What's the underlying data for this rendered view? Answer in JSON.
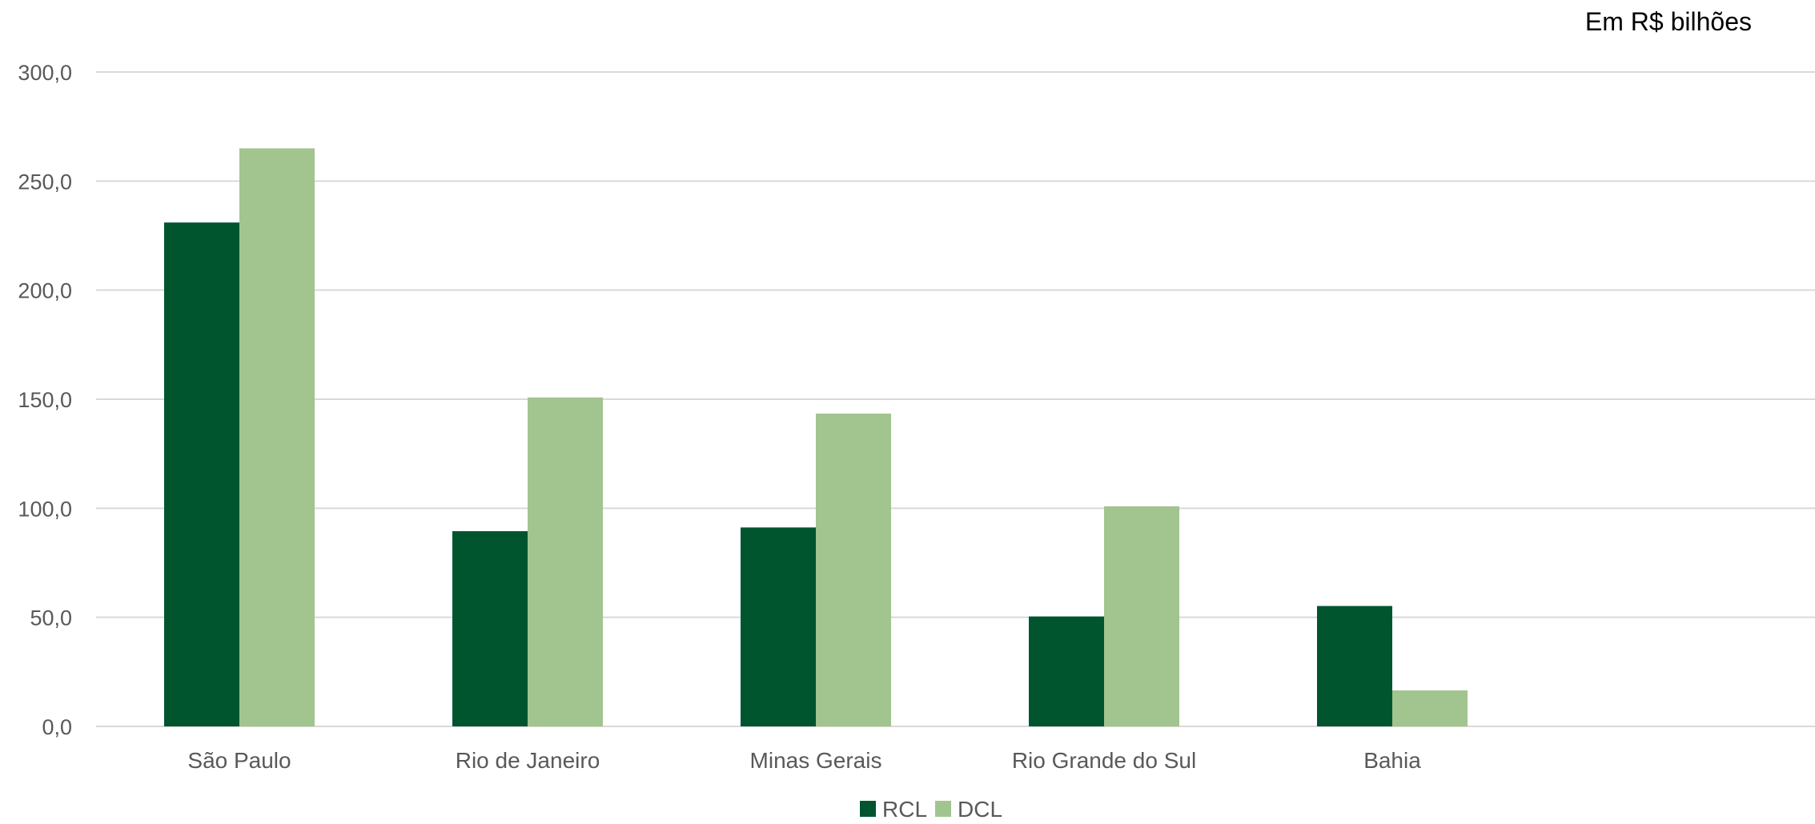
{
  "chart_data": {
    "type": "bar",
    "unit_note": "Em R$ bilhões",
    "categories": [
      "São Paulo",
      "Rio de Janeiro",
      "Minas Gerais",
      "Rio Grande do Sul",
      "Bahia"
    ],
    "series": [
      {
        "name": "RCL",
        "values": [
          231.0,
          89.5,
          91.2,
          50.4,
          55.2
        ],
        "color": "#00552E"
      },
      {
        "name": "DCL",
        "values": [
          265.0,
          150.8,
          143.4,
          100.9,
          16.5
        ],
        "color": "#A2C48F"
      }
    ],
    "y_ticks": [
      "0,0",
      "50,0",
      "100,0",
      "150,0",
      "200,0",
      "250,0",
      "300,0"
    ],
    "ylim": [
      0,
      300
    ],
    "grid": true,
    "legend_position": "bottom"
  }
}
